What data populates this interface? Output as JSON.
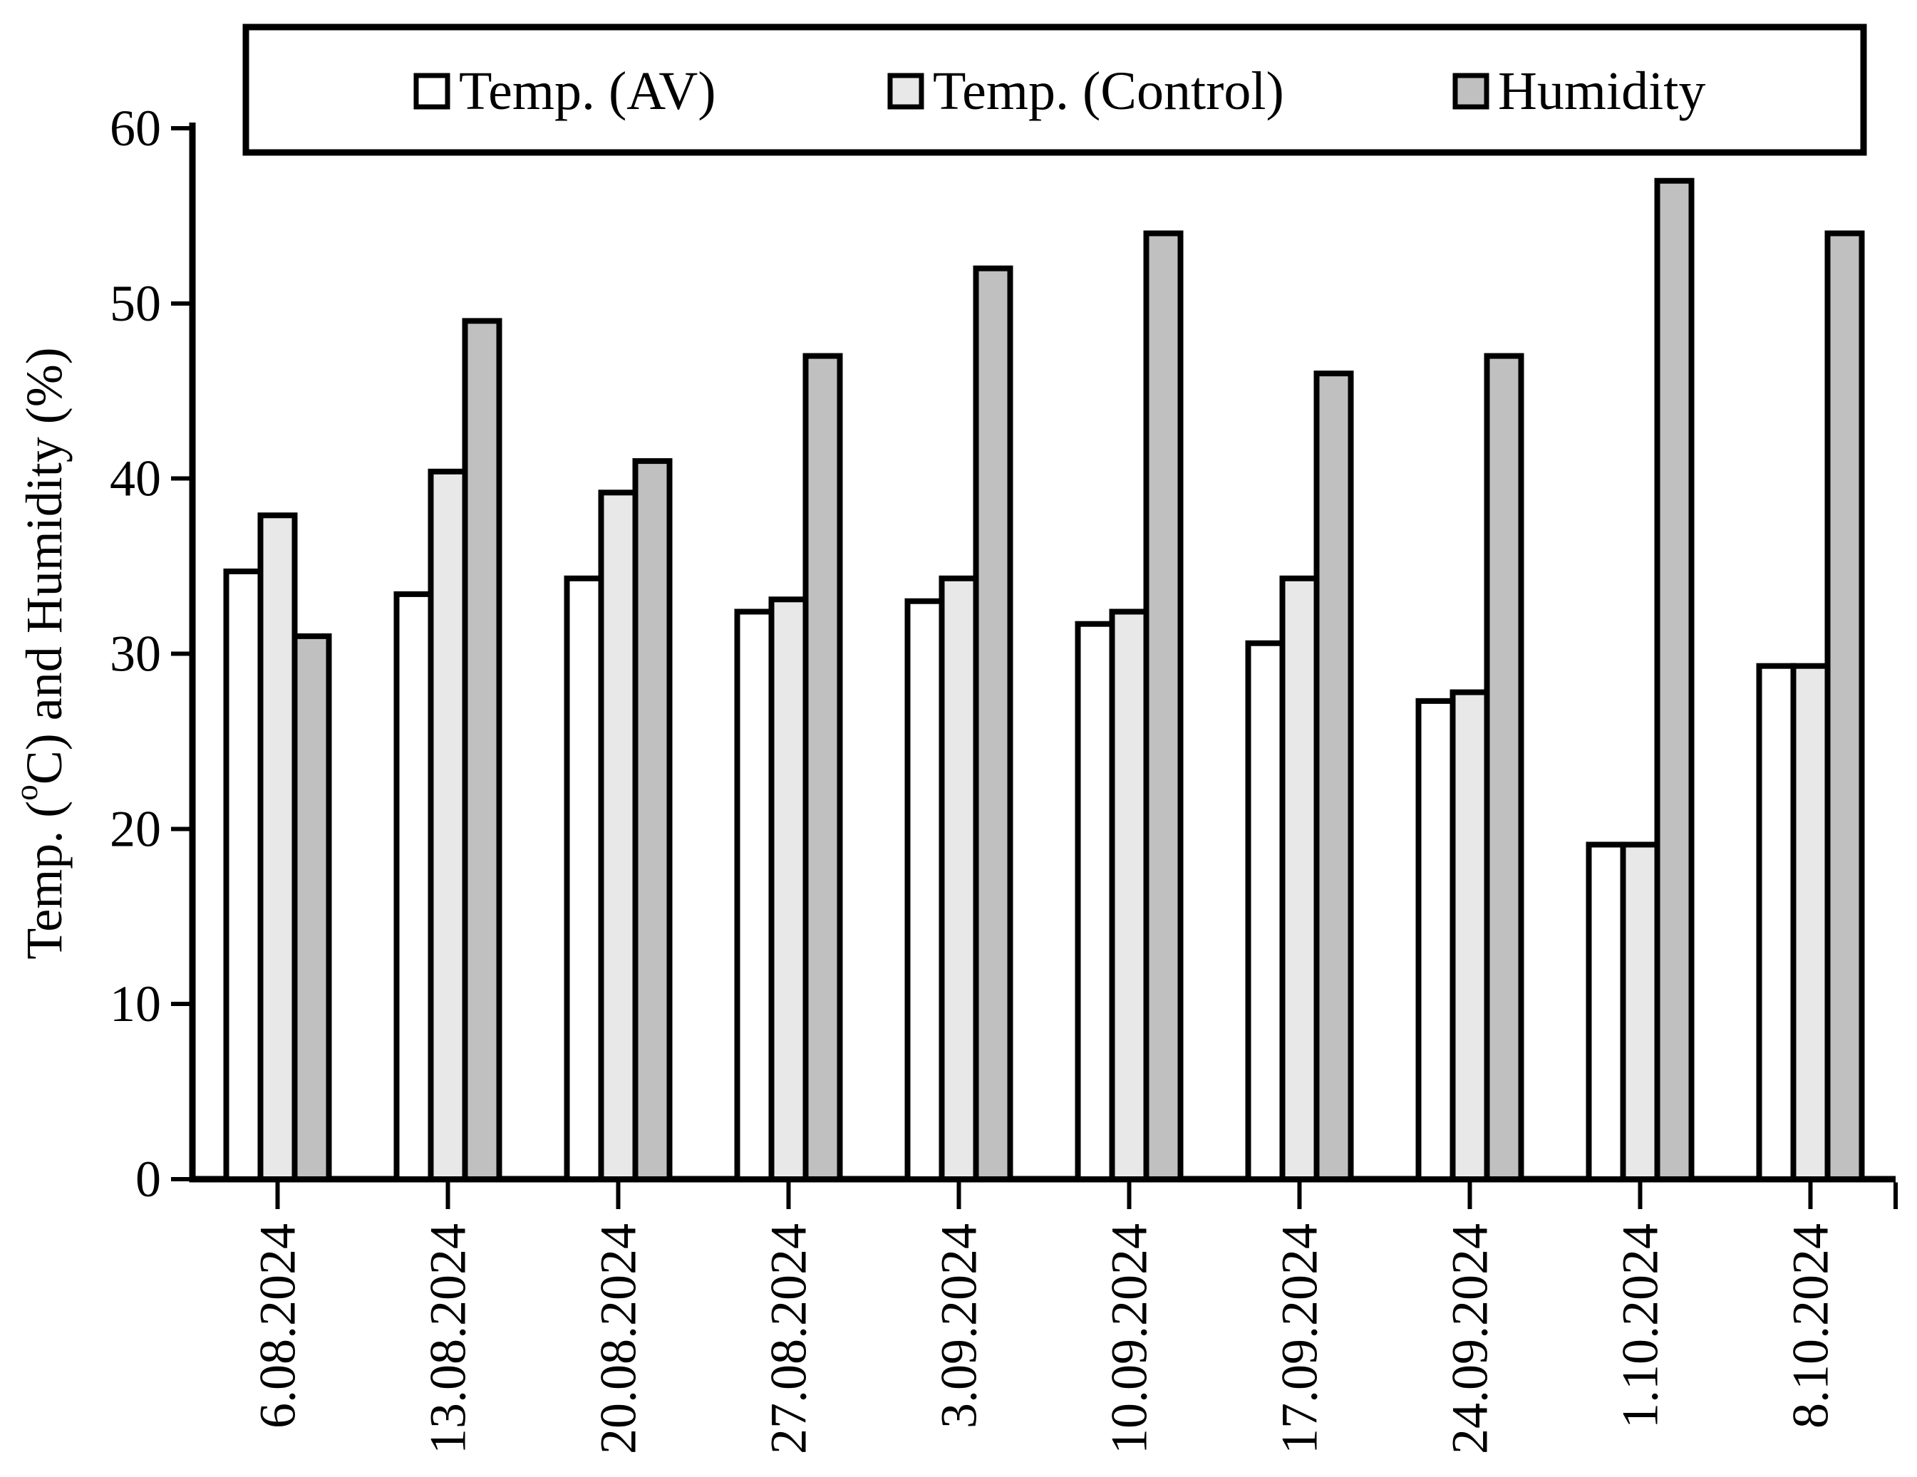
{
  "figure": {
    "background": "#ffffff",
    "axis_color": "#000000",
    "bar_border_color": "#000000"
  },
  "chart_data": {
    "type": "bar",
    "title": "",
    "xlabel": "",
    "ylabel": {
      "plain": "Temp. (°C) and Humidity (%)",
      "prefix": "Temp. (",
      "superscript": "o",
      "suffix": "C) and Humidity (%)"
    },
    "categories": [
      "6.08.2024",
      "13.08.2024",
      "20.08.2024",
      "27.08.2024",
      "3.09.2024",
      "10.09.2024",
      "17.09.2024",
      "24.09.2024",
      "1.10.2024",
      "8.10.2024"
    ],
    "series": [
      {
        "name": "Temp. (AV)",
        "fill": "#ffffff",
        "values": [
          34.7,
          33.4,
          34.3,
          32.4,
          33.0,
          31.7,
          30.6,
          27.3,
          19.1,
          29.3
        ]
      },
      {
        "name": "Temp. (Control)",
        "fill": "#e8e8e8",
        "values": [
          37.9,
          40.4,
          39.2,
          33.1,
          34.3,
          32.4,
          34.3,
          27.8,
          19.1,
          29.3
        ]
      },
      {
        "name": "Humidity",
        "fill": "#c0c0c0",
        "values": [
          31,
          49,
          41,
          47,
          52,
          54,
          46,
          47,
          57,
          54
        ]
      }
    ],
    "ylim": [
      0,
      60
    ],
    "y_ticks": [
      0,
      10,
      20,
      30,
      40,
      50,
      60
    ],
    "grid": false,
    "legend_position": "top"
  }
}
